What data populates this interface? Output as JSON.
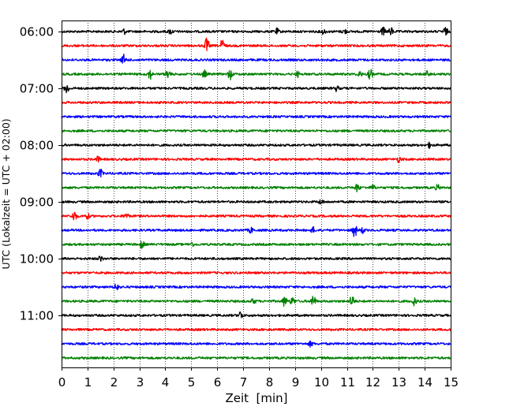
{
  "chart_data": {
    "type": "line",
    "xlabel": "Zeit  [min]",
    "ylabel": "UTC (Lokalzeit = UTC + 02:00)",
    "xlim": [
      0,
      15
    ],
    "x_ticks": [
      0,
      1,
      2,
      3,
      4,
      5,
      6,
      7,
      8,
      9,
      10,
      11,
      12,
      13,
      14,
      15
    ],
    "y_tick_labels": [
      "06:00",
      "07:00",
      "08:00",
      "09:00",
      "10:00",
      "11:00"
    ],
    "x_grid": "dotted vertical lines at each minute",
    "y_grid": false,
    "trace_start": "06:00",
    "trace_interval_minutes": 15,
    "trace_color_cycle": [
      "#000000",
      "#ff0000",
      "#0000ff",
      "#008000"
    ],
    "traces": [
      {
        "start": "06:00",
        "color": "#000000",
        "events": [
          {
            "t": 2.4,
            "amp": 1
          },
          {
            "t": 4.2,
            "amp": 1
          },
          {
            "t": 8.3,
            "amp": 1
          },
          {
            "t": 10.1,
            "amp": 1
          },
          {
            "t": 10.9,
            "amp": 1
          },
          {
            "t": 12.4,
            "amp": 1.5
          },
          {
            "t": 12.7,
            "amp": 1.5
          },
          {
            "t": 14.8,
            "amp": 1.5
          }
        ]
      },
      {
        "start": "06:15",
        "color": "#ff0000",
        "events": [
          {
            "t": 5.6,
            "amp": 3
          },
          {
            "t": 6.2,
            "amp": 2.5
          }
        ]
      },
      {
        "start": "06:30",
        "color": "#0000ff",
        "events": [
          {
            "t": 2.4,
            "amp": 2
          }
        ]
      },
      {
        "start": "06:45",
        "color": "#008000",
        "events": [
          {
            "t": 3.4,
            "amp": 2
          },
          {
            "t": 4.1,
            "amp": 2
          },
          {
            "t": 5.5,
            "amp": 1.5
          },
          {
            "t": 6.5,
            "amp": 2
          },
          {
            "t": 9.1,
            "amp": 1
          },
          {
            "t": 11.5,
            "amp": 1
          },
          {
            "t": 11.9,
            "amp": 2
          },
          {
            "t": 14.1,
            "amp": 1
          }
        ]
      },
      {
        "start": "07:00",
        "color": "#000000",
        "events": [
          {
            "t": 0.2,
            "amp": 2
          },
          {
            "t": 10.6,
            "amp": 1
          }
        ]
      },
      {
        "start": "07:15",
        "color": "#ff0000",
        "events": []
      },
      {
        "start": "07:30",
        "color": "#0000ff",
        "events": []
      },
      {
        "start": "07:45",
        "color": "#008000",
        "events": []
      },
      {
        "start": "08:00",
        "color": "#000000",
        "events": [
          {
            "t": 14.2,
            "amp": 1
          }
        ]
      },
      {
        "start": "08:15",
        "color": "#ff0000",
        "events": [
          {
            "t": 1.4,
            "amp": 1
          },
          {
            "t": 13.0,
            "amp": 1
          }
        ]
      },
      {
        "start": "08:30",
        "color": "#0000ff",
        "events": [
          {
            "t": 1.5,
            "amp": 1.5
          }
        ]
      },
      {
        "start": "08:45",
        "color": "#008000",
        "events": [
          {
            "t": 11.4,
            "amp": 1.5
          },
          {
            "t": 12.0,
            "amp": 1
          },
          {
            "t": 14.5,
            "amp": 1
          }
        ]
      },
      {
        "start": "09:00",
        "color": "#000000",
        "events": [
          {
            "t": 10.0,
            "amp": 1
          }
        ]
      },
      {
        "start": "09:15",
        "color": "#ff0000",
        "events": [
          {
            "t": 0.5,
            "amp": 2
          },
          {
            "t": 1.0,
            "amp": 1
          },
          {
            "t": 2.5,
            "amp": 1
          }
        ]
      },
      {
        "start": "09:30",
        "color": "#0000ff",
        "events": [
          {
            "t": 7.3,
            "amp": 1
          },
          {
            "t": 9.7,
            "amp": 1
          },
          {
            "t": 11.3,
            "amp": 2.5
          },
          {
            "t": 11.6,
            "amp": 1
          }
        ]
      },
      {
        "start": "09:45",
        "color": "#008000",
        "events": [
          {
            "t": 3.1,
            "amp": 1.5
          },
          {
            "t": 5.0,
            "amp": 1
          }
        ]
      },
      {
        "start": "10:00",
        "color": "#000000",
        "events": [
          {
            "t": 1.5,
            "amp": 1
          }
        ]
      },
      {
        "start": "10:15",
        "color": "#ff0000",
        "events": []
      },
      {
        "start": "10:30",
        "color": "#0000ff",
        "events": [
          {
            "t": 2.1,
            "amp": 1.5
          }
        ]
      },
      {
        "start": "10:45",
        "color": "#008000",
        "events": [
          {
            "t": 7.4,
            "amp": 1
          },
          {
            "t": 8.6,
            "amp": 2
          },
          {
            "t": 8.9,
            "amp": 1.5
          },
          {
            "t": 9.7,
            "amp": 2.5
          },
          {
            "t": 11.2,
            "amp": 2.5
          },
          {
            "t": 13.6,
            "amp": 1.5
          }
        ]
      },
      {
        "start": "11:00",
        "color": "#000000",
        "events": [
          {
            "t": 6.9,
            "amp": 1.5
          }
        ]
      },
      {
        "start": "11:15",
        "color": "#ff0000",
        "events": []
      },
      {
        "start": "11:30",
        "color": "#0000ff",
        "events": [
          {
            "t": 9.6,
            "amp": 1
          }
        ]
      },
      {
        "start": "11:45",
        "color": "#008000",
        "events": []
      }
    ]
  }
}
